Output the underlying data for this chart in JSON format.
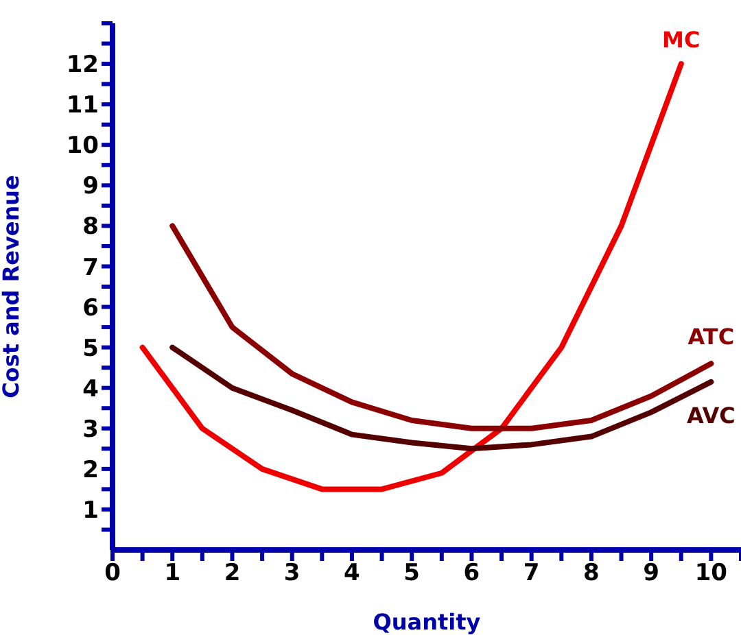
{
  "chart_data": {
    "type": "line",
    "xlabel": "Quantity",
    "ylabel": "Cost and Revenue",
    "xlim": [
      0,
      10.5
    ],
    "ylim": [
      0,
      13
    ],
    "xticks": [
      0,
      {
        "value": 0.5,
        "label": null
      },
      1,
      {
        "value": 1.5,
        "label": null
      },
      2,
      {
        "value": 2.5,
        "label": null
      },
      3,
      {
        "value": 3.5,
        "label": null
      },
      4,
      {
        "value": 4.5,
        "label": null
      },
      5,
      {
        "value": 5.5,
        "label": null
      },
      6,
      {
        "value": 6.5,
        "label": null
      },
      7,
      {
        "value": 7.5,
        "label": null
      },
      8,
      {
        "value": 8.5,
        "label": null
      },
      9,
      {
        "value": 9.5,
        "label": null
      },
      10,
      {
        "value": 10.5,
        "label": null
      }
    ],
    "yticks": [
      {
        "value": 0.5,
        "label": null
      },
      1,
      {
        "value": 1.5,
        "label": null
      },
      2,
      {
        "value": 2.5,
        "label": null
      },
      3,
      {
        "value": 3.5,
        "label": null
      },
      4,
      {
        "value": 4.5,
        "label": null
      },
      5,
      {
        "value": 5.5,
        "label": null
      },
      6,
      {
        "value": 6.5,
        "label": null
      },
      7,
      {
        "value": 7.5,
        "label": null
      },
      8,
      {
        "value": 8.5,
        "label": null
      },
      9,
      {
        "value": 9.5,
        "label": null
      },
      10,
      {
        "value": 10.5,
        "label": null
      },
      11,
      {
        "value": 11.5,
        "label": null
      },
      12,
      {
        "value": 12.5,
        "label": null
      },
      {
        "value": 13,
        "label": null
      }
    ],
    "grid": false,
    "legend": false,
    "marker": "none",
    "line_style": "solid",
    "series": [
      {
        "name": "MC",
        "color": "#ee0000",
        "x": [
          0.5,
          1.5,
          2.5,
          3.5,
          4.5,
          5.5,
          6.5,
          7.5,
          8.5,
          9.5
        ],
        "values": [
          5,
          3,
          2,
          1.5,
          1.5,
          1.9,
          3,
          5,
          8,
          12
        ]
      },
      {
        "name": "ATC",
        "color": "#8b0000",
        "x": [
          1,
          2,
          3,
          4,
          5,
          6,
          7,
          8,
          9,
          10
        ],
        "values": [
          8,
          5.5,
          4.35,
          3.65,
          3.2,
          3.0,
          3.0,
          3.2,
          3.8,
          4.6
        ]
      },
      {
        "name": "AVC",
        "color": "#550000",
        "x": [
          1,
          2,
          3,
          4,
          5,
          6,
          7,
          8,
          9,
          10
        ],
        "values": [
          5,
          4,
          3.45,
          2.85,
          2.65,
          2.5,
          2.6,
          2.8,
          3.4,
          4.15
        ]
      }
    ]
  }
}
